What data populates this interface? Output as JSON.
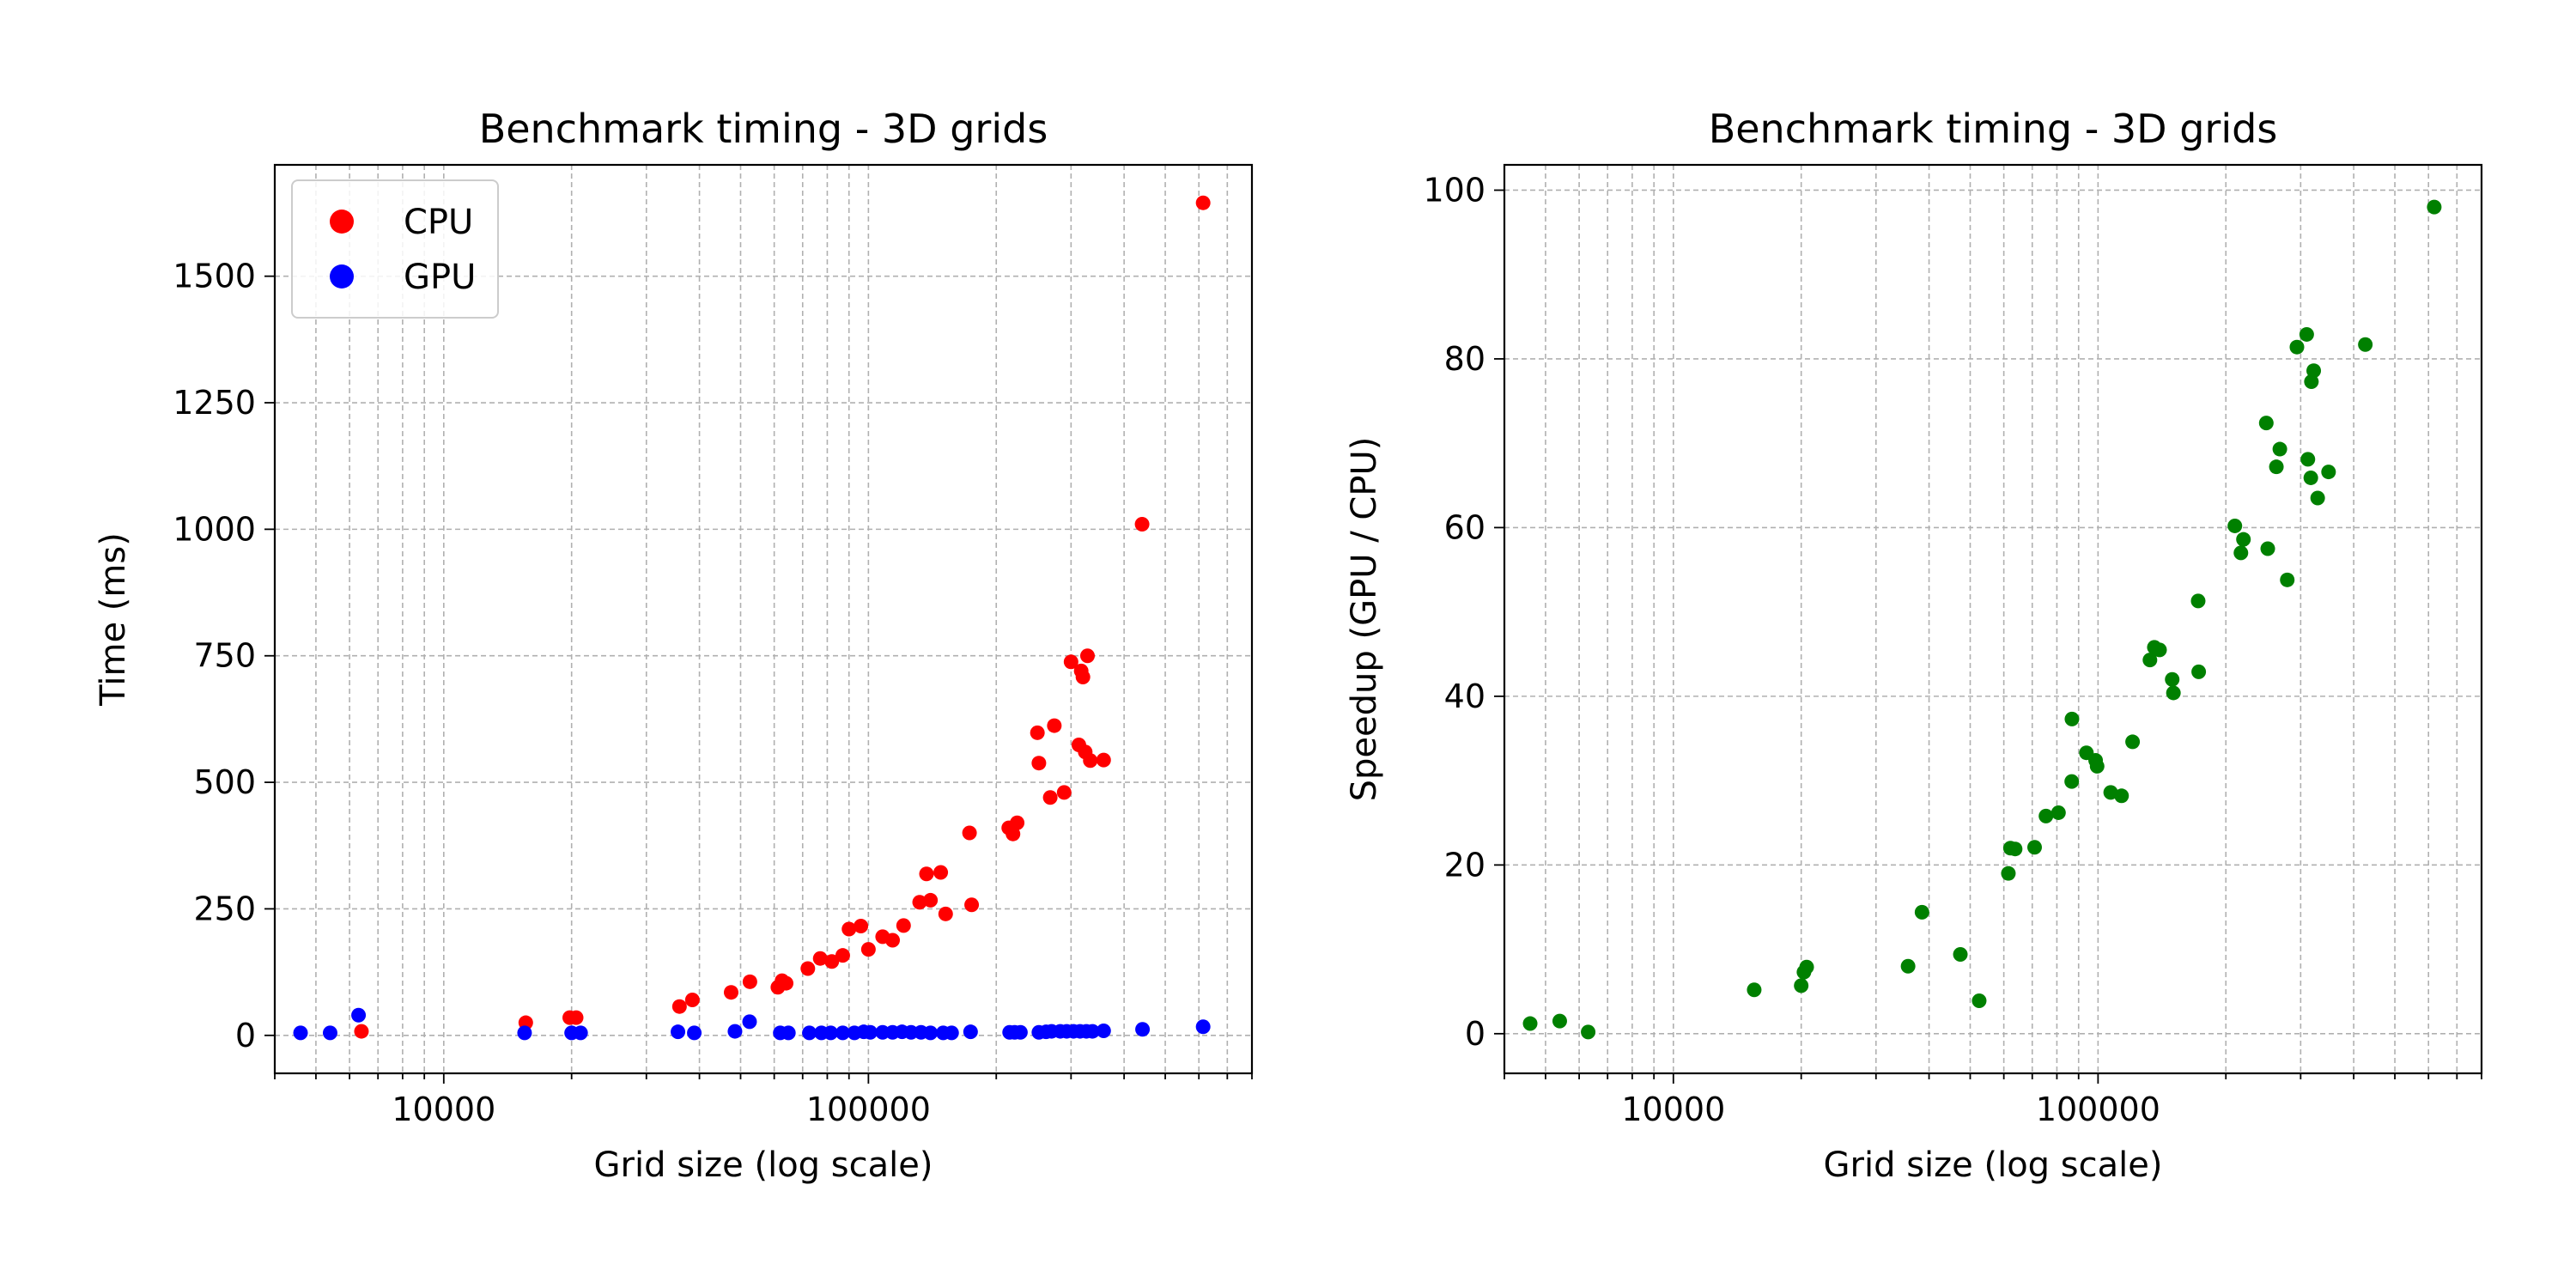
{
  "chart_data": [
    {
      "type": "scatter",
      "title": "Benchmark timing - 3D grids",
      "xlabel": "Grid size (log scale)",
      "ylabel": "Time (ms)",
      "xscale": "log",
      "xlim": [
        4000,
        800000
      ],
      "ylim": [
        -75,
        1720
      ],
      "xticks": [
        {
          "value": 10000,
          "label": "10000"
        },
        {
          "value": 100000,
          "label": "100000"
        }
      ],
      "yticks": [
        {
          "value": 0,
          "label": "0"
        },
        {
          "value": 250,
          "label": "250"
        },
        {
          "value": 500,
          "label": "500"
        },
        {
          "value": 750,
          "label": "750"
        },
        {
          "value": 1000,
          "label": "1000"
        },
        {
          "value": 1250,
          "label": "1250"
        },
        {
          "value": 1500,
          "label": "1500"
        }
      ],
      "grid": true,
      "legend": "top-left",
      "series": [
        {
          "name": "CPU",
          "color": "#ff0000",
          "points": [
            [
              6400,
              8
            ],
            [
              15600,
              25
            ],
            [
              19800,
              35
            ],
            [
              20500,
              35
            ],
            [
              35900,
              57
            ],
            [
              38500,
              70
            ],
            [
              47500,
              85
            ],
            [
              52600,
              106
            ],
            [
              61200,
              95
            ],
            [
              62600,
              108
            ],
            [
              64000,
              103
            ],
            [
              72000,
              132
            ],
            [
              77000,
              152
            ],
            [
              82000,
              146
            ],
            [
              87000,
              158
            ],
            [
              90000,
              210
            ],
            [
              96000,
              216
            ],
            [
              100000,
              170
            ],
            [
              108000,
              195
            ],
            [
              114000,
              188
            ],
            [
              121000,
              217
            ],
            [
              132000,
              263
            ],
            [
              137000,
              319
            ],
            [
              140000,
              267
            ],
            [
              148000,
              322
            ],
            [
              152000,
              240
            ],
            [
              173000,
              400
            ],
            [
              175000,
              258
            ],
            [
              214000,
              410
            ],
            [
              219000,
              398
            ],
            [
              224000,
              420
            ],
            [
              250000,
              598
            ],
            [
              252000,
              538
            ],
            [
              268000,
              470
            ],
            [
              274000,
              612
            ],
            [
              289000,
              480
            ],
            [
              300000,
              738
            ],
            [
              313000,
              574
            ],
            [
              317000,
              720
            ],
            [
              320000,
              708
            ],
            [
              324000,
              560
            ],
            [
              328000,
              750
            ],
            [
              333000,
              543
            ],
            [
              358000,
              544
            ],
            [
              441000,
              1010
            ],
            [
              614000,
              1645
            ]
          ]
        },
        {
          "name": "GPU",
          "color": "#0000ff",
          "points": [
            [
              4600,
              5
            ],
            [
              5400,
              5
            ],
            [
              6300,
              40
            ],
            [
              15500,
              5
            ],
            [
              20000,
              5
            ],
            [
              21000,
              5
            ],
            [
              35600,
              7
            ],
            [
              38900,
              5
            ],
            [
              48500,
              8
            ],
            [
              52500,
              27
            ],
            [
              62000,
              5
            ],
            [
              64800,
              5
            ],
            [
              72600,
              5
            ],
            [
              77500,
              5
            ],
            [
              81500,
              5
            ],
            [
              87000,
              5
            ],
            [
              92700,
              5
            ],
            [
              97500,
              7
            ],
            [
              101000,
              6
            ],
            [
              108000,
              6
            ],
            [
              114000,
              6
            ],
            [
              120000,
              7
            ],
            [
              126000,
              6
            ],
            [
              133000,
              6
            ],
            [
              140000,
              5
            ],
            [
              150000,
              5
            ],
            [
              157000,
              5
            ],
            [
              174000,
              7
            ],
            [
              215000,
              6
            ],
            [
              221000,
              6
            ],
            [
              228000,
              6
            ],
            [
              252000,
              6
            ],
            [
              262000,
              7
            ],
            [
              270000,
              8
            ],
            [
              283000,
              8
            ],
            [
              293000,
              8
            ],
            [
              304000,
              8
            ],
            [
              315000,
              8
            ],
            [
              326000,
              8
            ],
            [
              337000,
              8
            ],
            [
              358000,
              9
            ],
            [
              442000,
              12
            ],
            [
              614000,
              17
            ]
          ]
        }
      ]
    },
    {
      "type": "scatter",
      "title": "Benchmark timing - 3D grids",
      "xlabel": "Grid size (log scale)",
      "ylabel": "Speedup (GPU / CPU)",
      "xscale": "log",
      "xlim": [
        4000,
        800000
      ],
      "ylim": [
        -4.7,
        103
      ],
      "xticks": [
        {
          "value": 10000,
          "label": "10000"
        },
        {
          "value": 100000,
          "label": "100000"
        }
      ],
      "yticks": [
        {
          "value": 0,
          "label": "0"
        },
        {
          "value": 20,
          "label": "20"
        },
        {
          "value": 40,
          "label": "40"
        },
        {
          "value": 60,
          "label": "60"
        },
        {
          "value": 80,
          "label": "80"
        },
        {
          "value": 100,
          "label": "100"
        }
      ],
      "grid": true,
      "series": [
        {
          "color": "#008000",
          "points": [
            [
              4600,
              1.2
            ],
            [
              5400,
              1.5
            ],
            [
              6300,
              0.2
            ],
            [
              15500,
              5.2
            ],
            [
              20000,
              5.7
            ],
            [
              20300,
              7.3
            ],
            [
              20600,
              7.9
            ],
            [
              35700,
              8.0
            ],
            [
              38500,
              14.4
            ],
            [
              47400,
              9.4
            ],
            [
              52500,
              3.9
            ],
            [
              61500,
              19.0
            ],
            [
              62200,
              22.0
            ],
            [
              63800,
              21.9
            ],
            [
              70900,
              22.1
            ],
            [
              75400,
              25.8
            ],
            [
              80700,
              26.2
            ],
            [
              86700,
              29.9
            ],
            [
              86800,
              37.3
            ],
            [
              93900,
              33.3
            ],
            [
              98700,
              32.4
            ],
            [
              99500,
              31.7
            ],
            [
              107100,
              28.6
            ],
            [
              113600,
              28.2
            ],
            [
              120600,
              34.6
            ],
            [
              132500,
              44.3
            ],
            [
              135700,
              45.8
            ],
            [
              139600,
              45.5
            ],
            [
              149500,
              42.0
            ],
            [
              150500,
              40.4
            ],
            [
              172100,
              51.3
            ],
            [
              172600,
              42.9
            ],
            [
              210000,
              60.2
            ],
            [
              217000,
              57.0
            ],
            [
              220000,
              58.6
            ],
            [
              249000,
              72.4
            ],
            [
              251000,
              57.5
            ],
            [
              263000,
              67.2
            ],
            [
              268000,
              69.3
            ],
            [
              279000,
              53.8
            ],
            [
              294000,
              81.4
            ],
            [
              310000,
              82.9
            ],
            [
              312000,
              68.1
            ],
            [
              317000,
              65.9
            ],
            [
              318000,
              77.3
            ],
            [
              322000,
              78.6
            ],
            [
              329000,
              63.5
            ],
            [
              349000,
              66.6
            ],
            [
              426000,
              81.7
            ],
            [
              619000,
              98.0
            ]
          ]
        }
      ]
    }
  ]
}
